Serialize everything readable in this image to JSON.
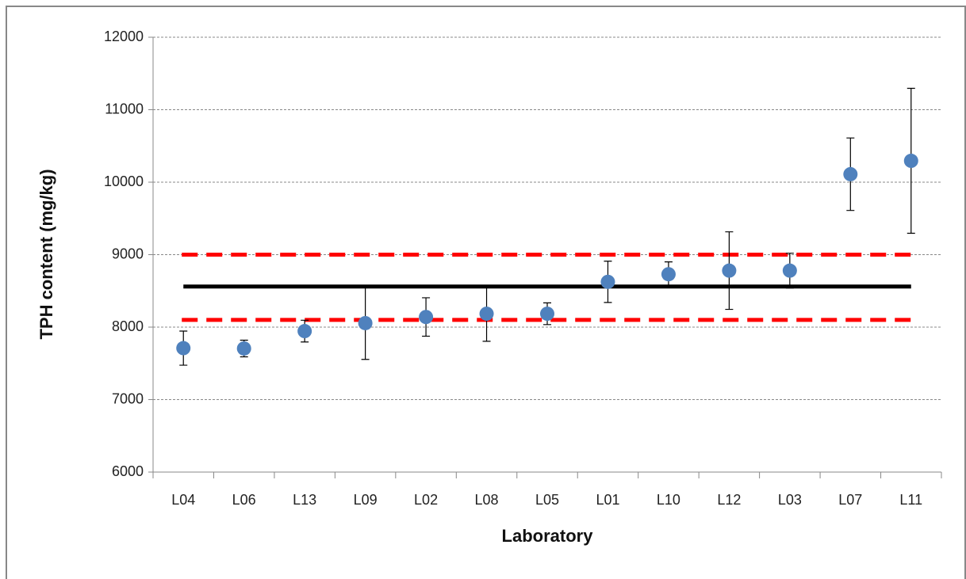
{
  "chart_data": {
    "type": "scatter",
    "x_label": "Laboratory",
    "y_label": "TPH content (mg/kg)",
    "categories": [
      "L04",
      "L06",
      "L13",
      "L09",
      "L02",
      "L08",
      "L05",
      "L01",
      "L10",
      "L12",
      "L03",
      "L07",
      "L11"
    ],
    "series": [
      {
        "name": "TPH content",
        "color": "#4f81bd",
        "values": [
          7710,
          7705,
          7945,
          8055,
          8140,
          8185,
          8185,
          8625,
          8730,
          8780,
          8780,
          10110,
          10295
        ],
        "errors": [
          235,
          115,
          150,
          500,
          265,
          380,
          150,
          285,
          170,
          535,
          240,
          500,
          1000
        ]
      }
    ],
    "reference_lines": [
      {
        "value": 8560,
        "color": "#000000",
        "style": "solid"
      },
      {
        "value": 9000,
        "color": "#ff0000",
        "style": "dashed"
      },
      {
        "value": 8100,
        "color": "#ff0000",
        "style": "dashed"
      }
    ],
    "ylim": [
      6000,
      12000
    ],
    "yticks": [
      6000,
      7000,
      8000,
      9000,
      10000,
      11000,
      12000
    ],
    "grid": true
  }
}
